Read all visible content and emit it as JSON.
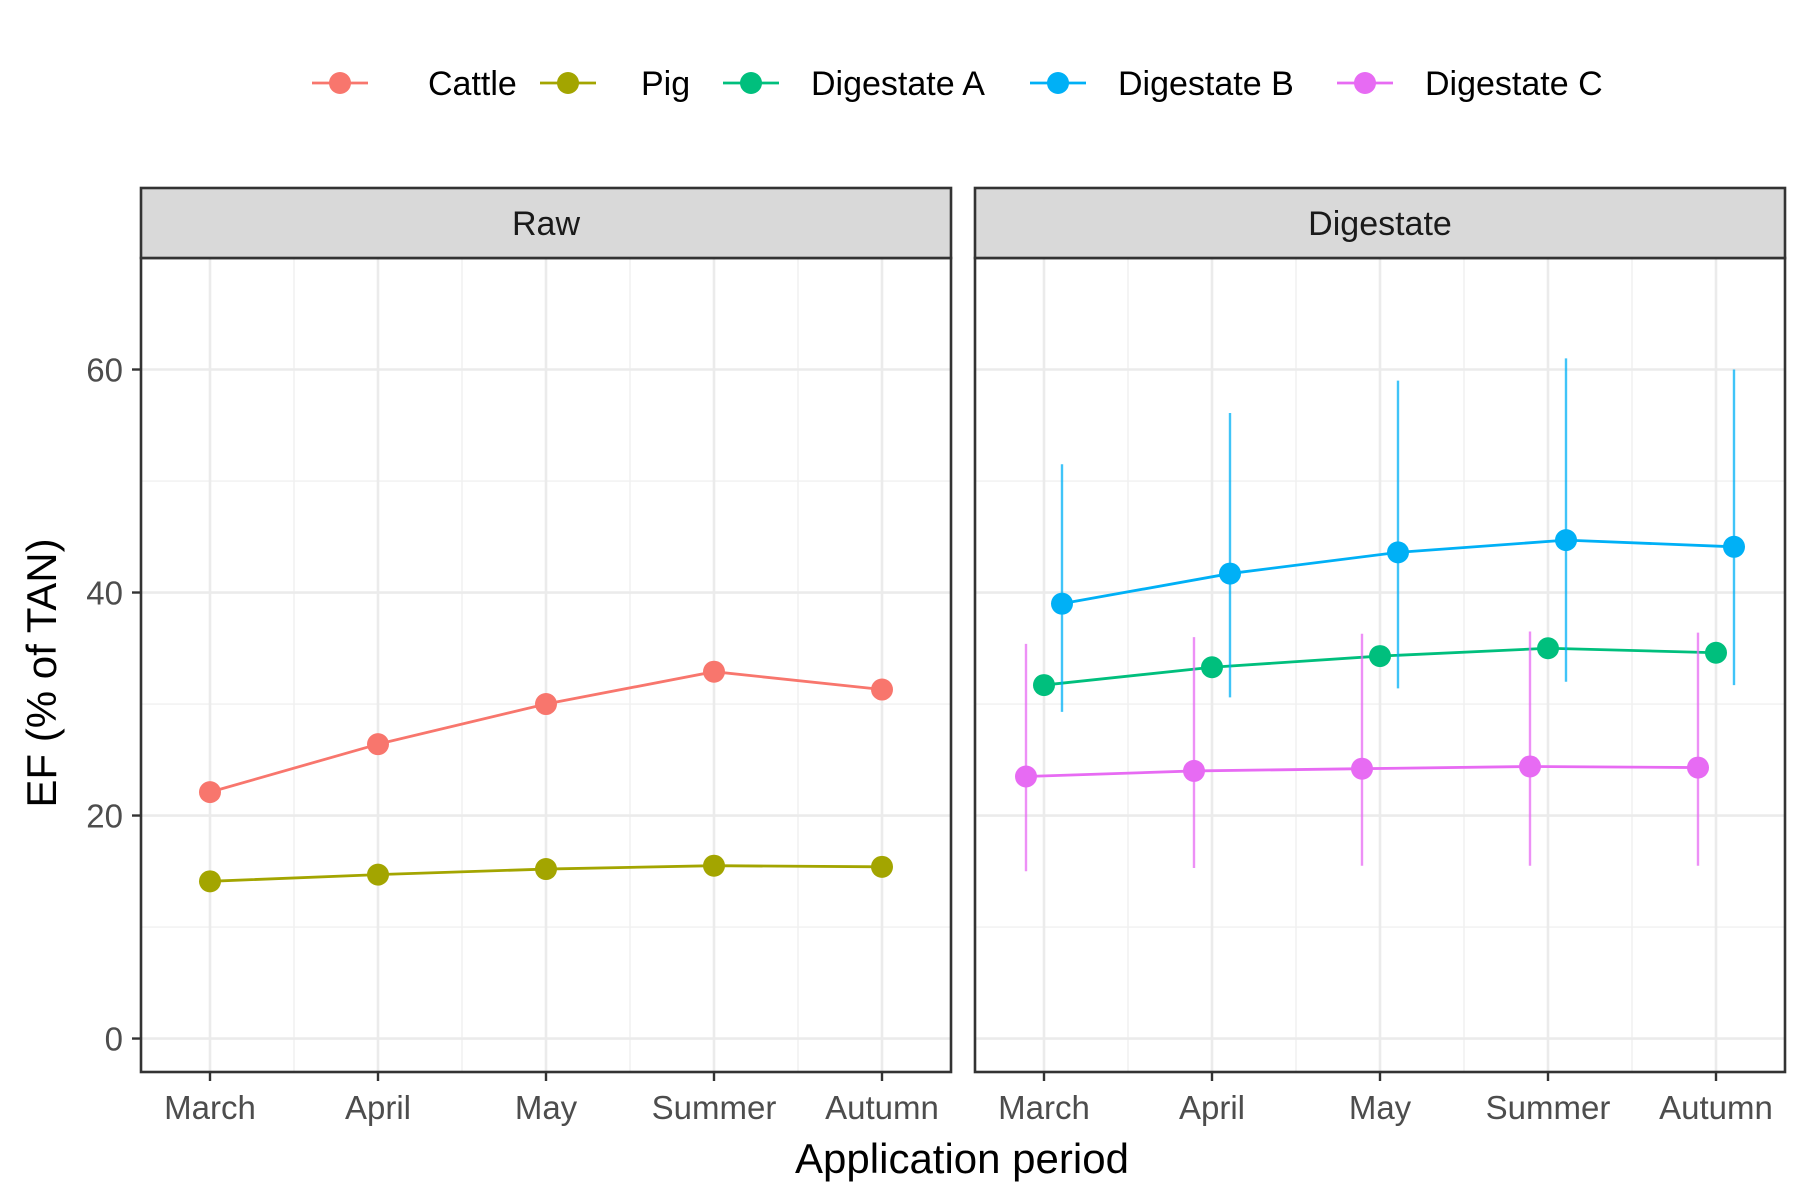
{
  "chart_data": {
    "type": "line",
    "x_categories": [
      "March",
      "April",
      "May",
      "Summer",
      "Autumn"
    ],
    "xlabel": "Application period",
    "ylabel": "EF (% of TAN)",
    "ylim": [
      -3,
      70
    ],
    "y_ticks": [
      0,
      20,
      40,
      60
    ],
    "grid": true,
    "legend_position": "top",
    "panels": [
      {
        "label": "Raw",
        "series": [
          {
            "name": "Cattle",
            "color": "#F8766D",
            "values": [
              22.1,
              26.4,
              30.0,
              32.9,
              31.3
            ]
          },
          {
            "name": "Pig",
            "color": "#A3A500",
            "values": [
              14.1,
              14.7,
              15.2,
              15.5,
              15.4
            ]
          }
        ]
      },
      {
        "label": "Digestate",
        "series": [
          {
            "name": "Digestate A",
            "color": "#00BF7D",
            "values": [
              31.7,
              33.3,
              34.3,
              35.0,
              34.6
            ]
          },
          {
            "name": "Digestate B",
            "color": "#00B0F6",
            "values": [
              39.0,
              41.7,
              43.6,
              44.7,
              44.1
            ],
            "lower": [
              29.3,
              30.6,
              31.4,
              32.0,
              31.7
            ],
            "upper": [
              51.5,
              56.1,
              59.0,
              61.0,
              60.0
            ]
          },
          {
            "name": "Digestate C",
            "color": "#E76BF3",
            "values": [
              23.5,
              24.0,
              24.2,
              24.4,
              24.3
            ],
            "lower": [
              15.0,
              15.3,
              15.5,
              15.5,
              15.5
            ],
            "upper": [
              35.4,
              36.0,
              36.3,
              36.5,
              36.4
            ]
          }
        ]
      }
    ]
  }
}
